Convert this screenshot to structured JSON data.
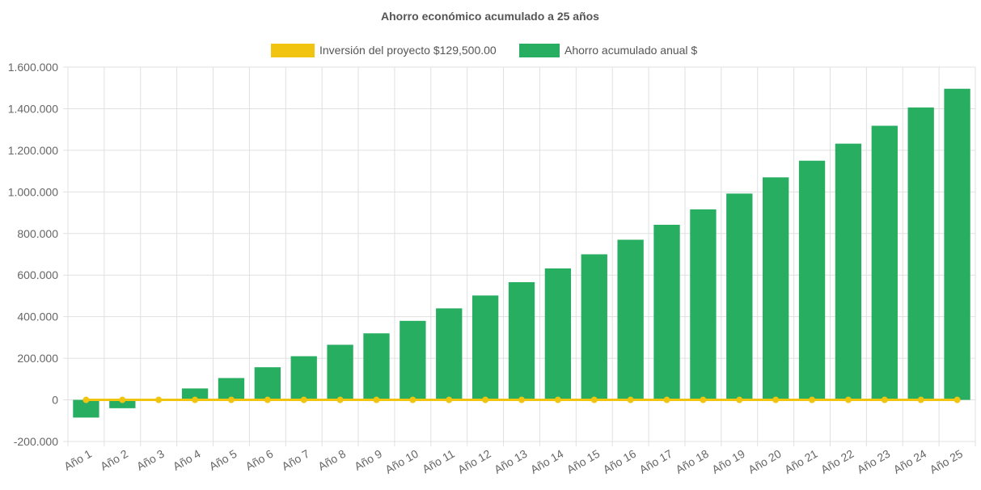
{
  "chart_data": {
    "type": "bar",
    "title": "Ahorro económico acumulado a 25 años",
    "categories": [
      "Año 1",
      "Año 2",
      "Año 3",
      "Año 4",
      "Año 5",
      "Año 6",
      "Año 7",
      "Año 8",
      "Año 9",
      "Año 10",
      "Año 11",
      "Año 12",
      "Año 13",
      "Año 14",
      "Año 15",
      "Año 16",
      "Año 17",
      "Año 18",
      "Año 19",
      "Año 20",
      "Año 21",
      "Año 22",
      "Año 23",
      "Año 24",
      "Año 25"
    ],
    "series": [
      {
        "name": "Inversión del proyecto $129,500.00",
        "type": "line",
        "color": "#f1c40f",
        "values": [
          0,
          0,
          0,
          0,
          0,
          0,
          0,
          0,
          0,
          0,
          0,
          0,
          0,
          0,
          0,
          0,
          0,
          0,
          0,
          0,
          0,
          0,
          0,
          0,
          0
        ]
      },
      {
        "name": "Ahorro acumulado anual $",
        "type": "bar",
        "color": "#27ae60",
        "values": [
          -85000,
          -40000,
          5000,
          55000,
          105000,
          157000,
          210000,
          265000,
          320000,
          380000,
          440000,
          502000,
          566000,
          632000,
          700000,
          770000,
          842000,
          916000,
          992000,
          1070000,
          1150000,
          1232000,
          1318000,
          1406000,
          1496000
        ]
      }
    ],
    "y_ticks": [
      "1.600.000",
      "1.400.000",
      "1.200.000",
      "1.000.000",
      "800.000",
      "600.000",
      "400.000",
      "200.000",
      "0",
      "-200.000"
    ],
    "ylim": [
      -200000,
      1600000
    ],
    "xlabel": "",
    "ylabel": "",
    "grid": true,
    "legend_position": "top"
  }
}
